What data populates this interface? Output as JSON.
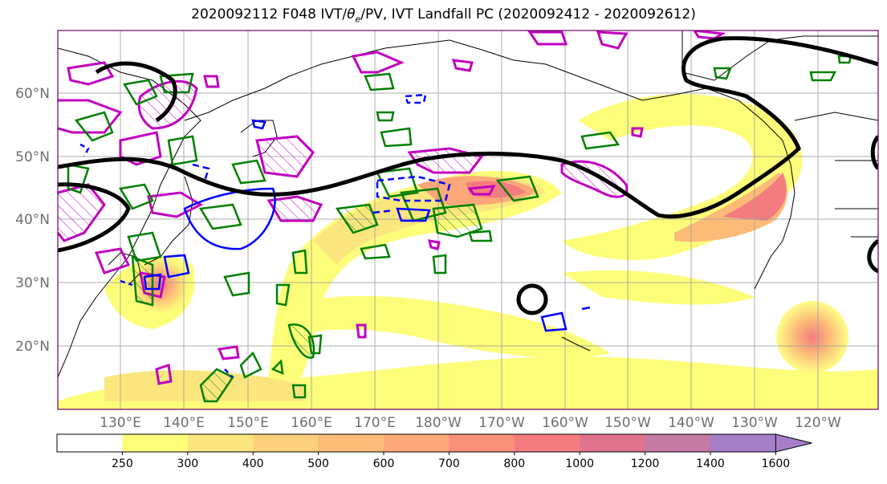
{
  "title": {
    "prefix": "2020092112 F048 IVT/",
    "theta": "θ",
    "theta_sub": "e",
    "suffix": "/PV, IVT Landfall PC (2020092412 - 2020092612)"
  },
  "map": {
    "lat_labels": [
      "60°N",
      "50°N",
      "40°N",
      "30°N",
      "20°N"
    ],
    "lat_values": [
      60,
      50,
      40,
      30,
      20
    ],
    "lon_labels": [
      "130°E",
      "140°E",
      "150°E",
      "160°E",
      "170°E",
      "180°W",
      "170°W",
      "160°W",
      "150°W",
      "140°W",
      "130°W",
      "120°W"
    ],
    "lon_values": [
      130,
      140,
      150,
      160,
      170,
      180,
      190,
      200,
      210,
      220,
      230,
      240
    ],
    "extent": {
      "lon_min": 120,
      "lon_max": 248,
      "lat_min": 10,
      "lat_max": 70
    }
  },
  "colorbar": {
    "tick_labels": [
      "250",
      "300",
      "400",
      "500",
      "600",
      "700",
      "800",
      "1000",
      "1200",
      "1400",
      "1600"
    ],
    "colors": [
      "#ffffff",
      "#fdfd7a",
      "#fbe67e",
      "#fcd07c",
      "#fcbc78",
      "#fca87a",
      "#f8907a",
      "#f47c80",
      "#e0748c",
      "#c47aa2",
      "#a67ec8"
    ]
  },
  "colors": {
    "contour_black": "#000000",
    "contour_magenta": "#c000c0",
    "contour_green": "#008000",
    "contour_blue": "#0000ff"
  }
}
